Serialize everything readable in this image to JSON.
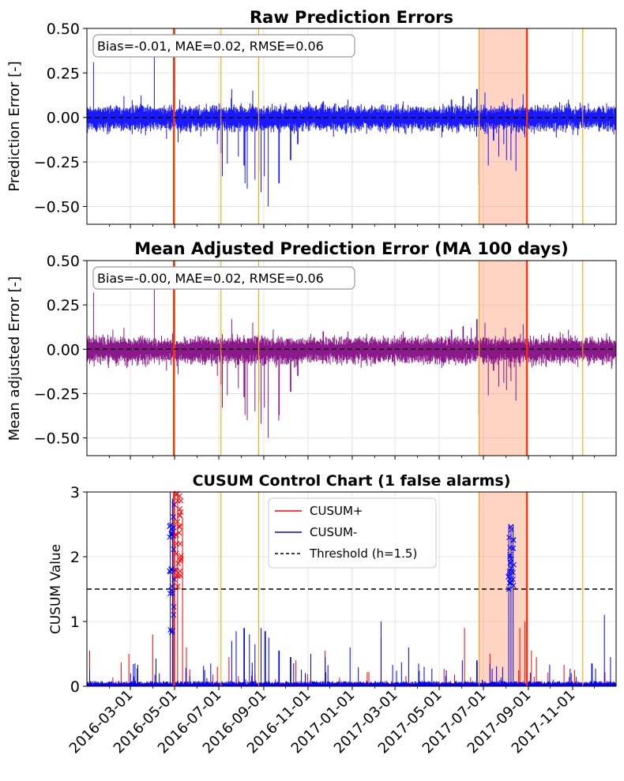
{
  "chart_data": [
    {
      "type": "line",
      "title": "Raw Prediction Errors",
      "ylabel": "Prediction Error [-]",
      "ylim": [
        -0.6,
        0.5
      ],
      "xlim": [
        "2016-01-01",
        "2017-12-31"
      ],
      "yticks": [
        "0.50",
        "0.25",
        "0.00",
        "−0.25",
        "−0.50"
      ],
      "ytick_values": [
        0.5,
        0.25,
        0.0,
        -0.25,
        -0.5
      ],
      "stats_box": "Bias=-0.01, MAE=0.02, RMSE=0.06",
      "series": [
        {
          "color": "#0000ff",
          "noise_amplitude": 0.06,
          "spikes": [
            {
              "x": "2016-01-10",
              "y": 0.31
            },
            {
              "x": "2016-02-21",
              "y": 0.12
            },
            {
              "x": "2016-03-22",
              "y": -0.1
            },
            {
              "x": "2016-04-03",
              "y": 0.35
            },
            {
              "x": "2016-04-20",
              "y": -0.12
            },
            {
              "x": "2016-04-30",
              "y": -0.6
            },
            {
              "x": "2016-05-01",
              "y": 0.5
            },
            {
              "x": "2016-05-06",
              "y": -0.14
            },
            {
              "x": "2016-06-29",
              "y": -0.15
            },
            {
              "x": "2016-07-04",
              "y": -0.2
            },
            {
              "x": "2016-07-06",
              "y": -0.33
            },
            {
              "x": "2016-07-13",
              "y": -0.26
            },
            {
              "x": "2016-07-19",
              "y": 0.16
            },
            {
              "x": "2016-07-28",
              "y": -0.22
            },
            {
              "x": "2016-08-05",
              "y": -0.27
            },
            {
              "x": "2016-08-06",
              "y": -0.37
            },
            {
              "x": "2016-08-09",
              "y": -0.4
            },
            {
              "x": "2016-08-17",
              "y": 0.15
            },
            {
              "x": "2016-08-20",
              "y": -0.35
            },
            {
              "x": "2016-08-25",
              "y": -0.3
            },
            {
              "x": "2016-08-28",
              "y": -0.42
            },
            {
              "x": "2016-09-02",
              "y": -0.33
            },
            {
              "x": "2016-09-07",
              "y": -0.5
            },
            {
              "x": "2016-09-22",
              "y": -0.37
            },
            {
              "x": "2016-10-08",
              "y": -0.24
            },
            {
              "x": "2016-10-18",
              "y": -0.15
            },
            {
              "x": "2016-11-22",
              "y": 0.09
            },
            {
              "x": "2016-12-26",
              "y": 0.1
            },
            {
              "x": "2017-03-12",
              "y": 0.09
            },
            {
              "x": "2017-05-18",
              "y": 0.1
            },
            {
              "x": "2017-06-03",
              "y": 0.12
            },
            {
              "x": "2017-06-14",
              "y": 0.11
            },
            {
              "x": "2017-06-22",
              "y": 0.16
            },
            {
              "x": "2017-06-25",
              "y": -0.38
            },
            {
              "x": "2017-07-03",
              "y": 0.14
            },
            {
              "x": "2017-07-08",
              "y": -0.27
            },
            {
              "x": "2017-07-15",
              "y": -0.13
            },
            {
              "x": "2017-07-22",
              "y": -0.22
            },
            {
              "x": "2017-07-29",
              "y": -0.15
            },
            {
              "x": "2017-08-02",
              "y": -0.24
            },
            {
              "x": "2017-08-08",
              "y": -0.19
            },
            {
              "x": "2017-08-15",
              "y": -0.3
            },
            {
              "x": "2017-08-25",
              "y": 0.13
            },
            {
              "x": "2017-10-26",
              "y": 0.1
            },
            {
              "x": "2017-11-08",
              "y": -0.1
            },
            {
              "x": "2017-12-18",
              "y": 0.08
            }
          ]
        }
      ],
      "zero_line": 0.0,
      "grid": true
    },
    {
      "type": "line",
      "title": "Mean Adjusted Prediction Error (MA 100 days)",
      "ylabel": "Mean adjusted Error [-]",
      "ylim": [
        -0.6,
        0.5
      ],
      "xlim": [
        "2016-01-01",
        "2017-12-31"
      ],
      "yticks": [
        "0.50",
        "0.25",
        "0.00",
        "−0.25",
        "−0.50"
      ],
      "ytick_values": [
        0.5,
        0.25,
        0.0,
        -0.25,
        -0.5
      ],
      "stats_box": "Bias=-0.00, MAE=0.02, RMSE=0.06",
      "series": [
        {
          "color": "#800080",
          "noise_amplitude": 0.065,
          "spikes": [
            {
              "x": "2016-01-10",
              "y": 0.32
            },
            {
              "x": "2016-02-21",
              "y": 0.12
            },
            {
              "x": "2016-03-22",
              "y": -0.1
            },
            {
              "x": "2016-04-03",
              "y": 0.35
            },
            {
              "x": "2016-04-20",
              "y": -0.12
            },
            {
              "x": "2016-04-30",
              "y": -0.6
            },
            {
              "x": "2016-05-01",
              "y": 0.5
            },
            {
              "x": "2016-05-06",
              "y": -0.14
            },
            {
              "x": "2016-06-29",
              "y": -0.15
            },
            {
              "x": "2016-07-04",
              "y": -0.2
            },
            {
              "x": "2016-07-06",
              "y": -0.33
            },
            {
              "x": "2016-07-13",
              "y": -0.26
            },
            {
              "x": "2016-07-19",
              "y": 0.17
            },
            {
              "x": "2016-07-28",
              "y": -0.22
            },
            {
              "x": "2016-08-05",
              "y": -0.27
            },
            {
              "x": "2016-08-06",
              "y": -0.37
            },
            {
              "x": "2016-08-09",
              "y": -0.4
            },
            {
              "x": "2016-08-17",
              "y": 0.15
            },
            {
              "x": "2016-08-20",
              "y": -0.35
            },
            {
              "x": "2016-08-25",
              "y": -0.3
            },
            {
              "x": "2016-08-28",
              "y": -0.42
            },
            {
              "x": "2016-09-02",
              "y": -0.33
            },
            {
              "x": "2016-09-07",
              "y": -0.5
            },
            {
              "x": "2016-09-22",
              "y": -0.37
            },
            {
              "x": "2016-10-08",
              "y": -0.24
            },
            {
              "x": "2016-10-18",
              "y": -0.15
            },
            {
              "x": "2016-11-22",
              "y": 0.1
            },
            {
              "x": "2016-12-26",
              "y": 0.1
            },
            {
              "x": "2017-03-12",
              "y": 0.1
            },
            {
              "x": "2017-05-18",
              "y": 0.11
            },
            {
              "x": "2017-06-03",
              "y": 0.13
            },
            {
              "x": "2017-06-14",
              "y": 0.12
            },
            {
              "x": "2017-06-22",
              "y": 0.17
            },
            {
              "x": "2017-06-25",
              "y": -0.37
            },
            {
              "x": "2017-07-03",
              "y": 0.15
            },
            {
              "x": "2017-07-08",
              "y": -0.26
            },
            {
              "x": "2017-07-15",
              "y": -0.12
            },
            {
              "x": "2017-07-22",
              "y": -0.21
            },
            {
              "x": "2017-07-29",
              "y": -0.14
            },
            {
              "x": "2017-08-02",
              "y": -0.23
            },
            {
              "x": "2017-08-08",
              "y": -0.18
            },
            {
              "x": "2017-08-15",
              "y": -0.29
            },
            {
              "x": "2017-08-25",
              "y": 0.14
            },
            {
              "x": "2017-10-26",
              "y": 0.11
            },
            {
              "x": "2017-11-08",
              "y": -0.1
            },
            {
              "x": "2017-12-18",
              "y": 0.09
            }
          ]
        }
      ],
      "zero_line": 0.0,
      "grid": true
    },
    {
      "type": "line",
      "title": "CUSUM Control Chart (1 false alarms)",
      "ylabel": "CUSUM Value",
      "ylim": [
        0,
        3
      ],
      "xlim": [
        "2016-01-01",
        "2017-12-31"
      ],
      "yticks": [
        "3",
        "2",
        "1",
        "0"
      ],
      "ytick_values": [
        3,
        2,
        1,
        0
      ],
      "threshold": 1.5,
      "legend": {
        "position": "top-center",
        "entries": [
          "CUSUM+",
          "CUSUM-",
          "Threshold (h=1.5)"
        ]
      },
      "series": [
        {
          "name": "CUSUM+",
          "color": "#ff0000",
          "spikes": [
            {
              "x": "2016-01-05",
              "y": 0.55
            },
            {
              "x": "2016-02-17",
              "y": 0.37
            },
            {
              "x": "2016-02-28",
              "y": 0.5
            },
            {
              "x": "2016-04-01",
              "y": 0.8
            },
            {
              "x": "2016-05-05",
              "y": 3.0
            },
            {
              "x": "2016-05-12",
              "y": 2.6
            },
            {
              "x": "2016-05-17",
              "y": 0.6
            },
            {
              "x": "2016-06-29",
              "y": 0.3
            },
            {
              "x": "2016-07-15",
              "y": 0.45
            },
            {
              "x": "2016-10-15",
              "y": 0.4
            },
            {
              "x": "2016-11-25",
              "y": 0.55
            },
            {
              "x": "2017-02-10",
              "y": 0.75
            },
            {
              "x": "2017-04-10",
              "y": 0.25
            },
            {
              "x": "2017-05-08",
              "y": 0.27
            },
            {
              "x": "2017-06-05",
              "y": 0.9
            },
            {
              "x": "2017-07-10",
              "y": 0.5
            },
            {
              "x": "2017-08-20",
              "y": 0.9
            },
            {
              "x": "2017-08-27",
              "y": 1.0
            },
            {
              "x": "2017-09-05",
              "y": 0.55
            },
            {
              "x": "2017-09-12",
              "y": 0.45
            },
            {
              "x": "2017-10-20",
              "y": 0.33
            }
          ]
        },
        {
          "name": "CUSUM-",
          "color": "#0000ff",
          "spikes": [
            {
              "x": "2016-01-05",
              "y": 0.25
            },
            {
              "x": "2016-03-01",
              "y": 0.2
            },
            {
              "x": "2016-04-10",
              "y": 0.2
            },
            {
              "x": "2016-04-25",
              "y": 3.0
            },
            {
              "x": "2016-04-28",
              "y": 2.9
            },
            {
              "x": "2016-05-01",
              "y": 3.0
            },
            {
              "x": "2016-06-20",
              "y": 0.35
            },
            {
              "x": "2016-07-19",
              "y": 0.7
            },
            {
              "x": "2016-07-25",
              "y": 0.85
            },
            {
              "x": "2016-08-05",
              "y": 0.9
            },
            {
              "x": "2016-08-12",
              "y": 0.8
            },
            {
              "x": "2016-08-20",
              "y": 0.65
            },
            {
              "x": "2016-08-28",
              "y": 0.9
            },
            {
              "x": "2016-09-03",
              "y": 0.85
            },
            {
              "x": "2016-09-08",
              "y": 0.75
            },
            {
              "x": "2016-09-22",
              "y": 0.55
            },
            {
              "x": "2016-10-08",
              "y": 0.45
            },
            {
              "x": "2016-11-05",
              "y": 0.5
            },
            {
              "x": "2016-11-25",
              "y": 0.45
            },
            {
              "x": "2016-12-29",
              "y": 0.6
            },
            {
              "x": "2017-02-10",
              "y": 1.0
            },
            {
              "x": "2017-03-20",
              "y": 0.6
            },
            {
              "x": "2017-04-10",
              "y": 0.3
            },
            {
              "x": "2017-06-02",
              "y": 0.4
            },
            {
              "x": "2017-06-22",
              "y": 0.4
            },
            {
              "x": "2017-07-10",
              "y": 0.35
            },
            {
              "x": "2017-08-05",
              "y": 2.5
            },
            {
              "x": "2017-08-08",
              "y": 2.4
            },
            {
              "x": "2017-08-11",
              "y": 2.5
            },
            {
              "x": "2017-10-30",
              "y": 0.2
            },
            {
              "x": "2017-11-28",
              "y": 0.35
            },
            {
              "x": "2017-12-15",
              "y": 1.1
            },
            {
              "x": "2017-12-23",
              "y": 0.45
            }
          ]
        },
        {
          "name": "Threshold (h=1.5)",
          "color": "#000000",
          "constant": 1.5
        }
      ],
      "grid": true
    }
  ],
  "shared": {
    "xtick_labels": [
      "2016-03-01",
      "2016-05-01",
      "2016-07-01",
      "2016-09-01",
      "2016-11-01",
      "2017-01-01",
      "2017-03-01",
      "2017-05-01",
      "2017-07-01",
      "2017-09-01",
      "2017-11-01"
    ],
    "xtick_minor_dates": [
      "2016-02-01",
      "2016-04-01",
      "2016-06-01",
      "2016-08-01",
      "2016-10-01",
      "2016-12-01",
      "2017-02-01",
      "2017-04-01",
      "2017-06-01",
      "2017-08-01",
      "2017-10-01",
      "2017-12-01"
    ],
    "drift_markers": {
      "orange_lines": [
        "2016-05-01",
        "2016-07-04",
        "2016-08-25",
        "2017-06-25",
        "2017-11-15"
      ],
      "red_lines": [
        "2016-04-30",
        "2017-08-30"
      ],
      "shaded_region": [
        "2017-06-25",
        "2017-08-30"
      ],
      "orange_color": "#ffa500",
      "red_color": "#ff3000",
      "shade_color": "#ffb090"
    },
    "alarm_clusters": [
      {
        "series": "CUSUM-",
        "x_start": "2016-04-24",
        "x_end": "2016-05-01",
        "y_min": 0.8,
        "y_max": 3.0,
        "marker": "×",
        "color": "#0000ff"
      },
      {
        "series": "CUSUM+",
        "x_start": "2016-05-02",
        "x_end": "2016-05-10",
        "y_min": 1.5,
        "y_max": 3.0,
        "marker": "×",
        "color": "#ff0000"
      },
      {
        "series": "CUSUM-",
        "x_start": "2017-08-04",
        "x_end": "2017-08-12",
        "y_min": 1.5,
        "y_max": 2.5,
        "marker": "×",
        "color": "#0000ff"
      }
    ]
  }
}
